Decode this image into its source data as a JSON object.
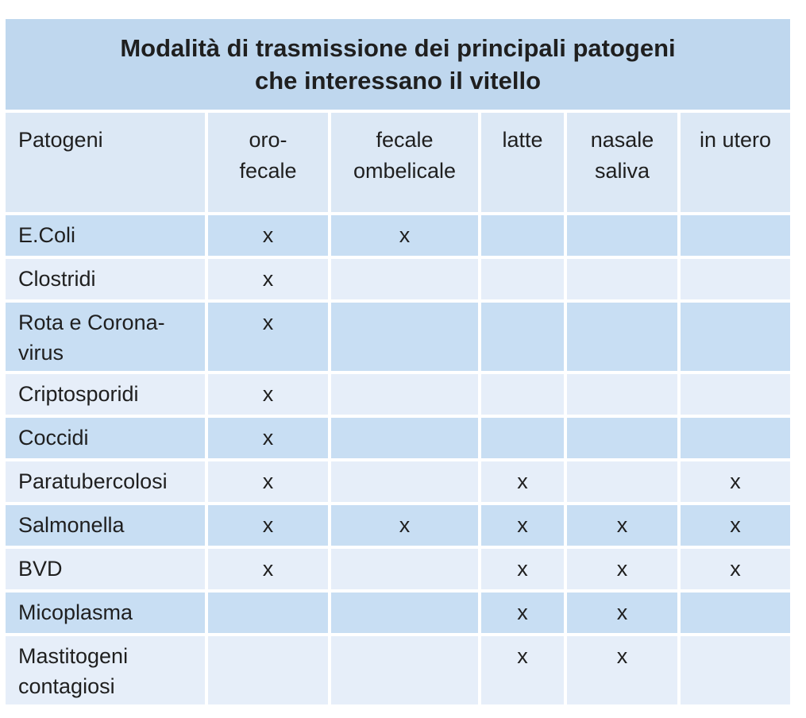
{
  "table": {
    "title_lines": [
      "Modalità di trasmissione dei principali patogeni",
      "che interessano il vitello"
    ],
    "mark": "x",
    "columns": [
      {
        "id": "patogeni",
        "lines": [
          "Patogeni"
        ]
      },
      {
        "id": "oro-fecale",
        "lines": [
          "oro-",
          "fecale"
        ]
      },
      {
        "id": "fecale-ombelicale",
        "lines": [
          "fecale",
          "ombelicale"
        ]
      },
      {
        "id": "latte",
        "lines": [
          "latte"
        ]
      },
      {
        "id": "nasale-saliva",
        "lines": [
          "nasale",
          "saliva"
        ]
      },
      {
        "id": "in-utero",
        "lines": [
          "in utero"
        ]
      }
    ],
    "rows": [
      {
        "label_lines": [
          "E.Coli"
        ],
        "marks": [
          1,
          1,
          0,
          0,
          0
        ]
      },
      {
        "label_lines": [
          "Clostridi"
        ],
        "marks": [
          1,
          0,
          0,
          0,
          0
        ]
      },
      {
        "label_lines": [
          "Rota e Corona-",
          "virus"
        ],
        "marks": [
          1,
          0,
          0,
          0,
          0
        ]
      },
      {
        "label_lines": [
          "Criptosporidi"
        ],
        "marks": [
          1,
          0,
          0,
          0,
          0
        ]
      },
      {
        "label_lines": [
          "Coccidi"
        ],
        "marks": [
          1,
          0,
          0,
          0,
          0
        ]
      },
      {
        "label_lines": [
          "Paratubercolosi"
        ],
        "marks": [
          1,
          0,
          1,
          0,
          1
        ]
      },
      {
        "label_lines": [
          "Salmonella"
        ],
        "marks": [
          1,
          1,
          1,
          1,
          1
        ]
      },
      {
        "label_lines": [
          "BVD"
        ],
        "marks": [
          1,
          0,
          1,
          1,
          1
        ]
      },
      {
        "label_lines": [
          "Micoplasma"
        ],
        "marks": [
          0,
          0,
          1,
          1,
          0
        ]
      },
      {
        "label_lines": [
          "Mastitogeni",
          "contagiosi"
        ],
        "marks": [
          0,
          0,
          1,
          1,
          0
        ]
      }
    ],
    "colors": {
      "title_bg": "#bfd7ee",
      "header_bg": "#dce8f5",
      "row_dark_bg": "#c8def3",
      "row_light_bg": "#e6eef9",
      "text_color": "#1f1f1f"
    }
  },
  "chart_data": {
    "type": "table",
    "title": "Modalità di trasmissione dei principali patogeni che interessano il vitello",
    "columns": [
      "Patogeni",
      "oro-fecale",
      "fecale ombelicale",
      "latte",
      "nasale saliva",
      "in utero"
    ],
    "rows": [
      [
        "E.Coli",
        "x",
        "x",
        "",
        "",
        ""
      ],
      [
        "Clostridi",
        "x",
        "",
        "",
        "",
        ""
      ],
      [
        "Rota e Corona-virus",
        "x",
        "",
        "",
        "",
        ""
      ],
      [
        "Criptosporidi",
        "x",
        "",
        "",
        "",
        ""
      ],
      [
        "Coccidi",
        "x",
        "",
        "",
        "",
        ""
      ],
      [
        "Paratubercolosi",
        "x",
        "",
        "x",
        "",
        "x"
      ],
      [
        "Salmonella",
        "x",
        "x",
        "x",
        "x",
        "x"
      ],
      [
        "BVD",
        "x",
        "",
        "x",
        "x",
        "x"
      ],
      [
        "Micoplasma",
        "",
        "",
        "x",
        "x",
        ""
      ],
      [
        "Mastitogeni contagiosi",
        "",
        "",
        "x",
        "x",
        ""
      ]
    ],
    "layout": {
      "striped": true,
      "title_position": "top",
      "mark_symbol": "x"
    }
  }
}
